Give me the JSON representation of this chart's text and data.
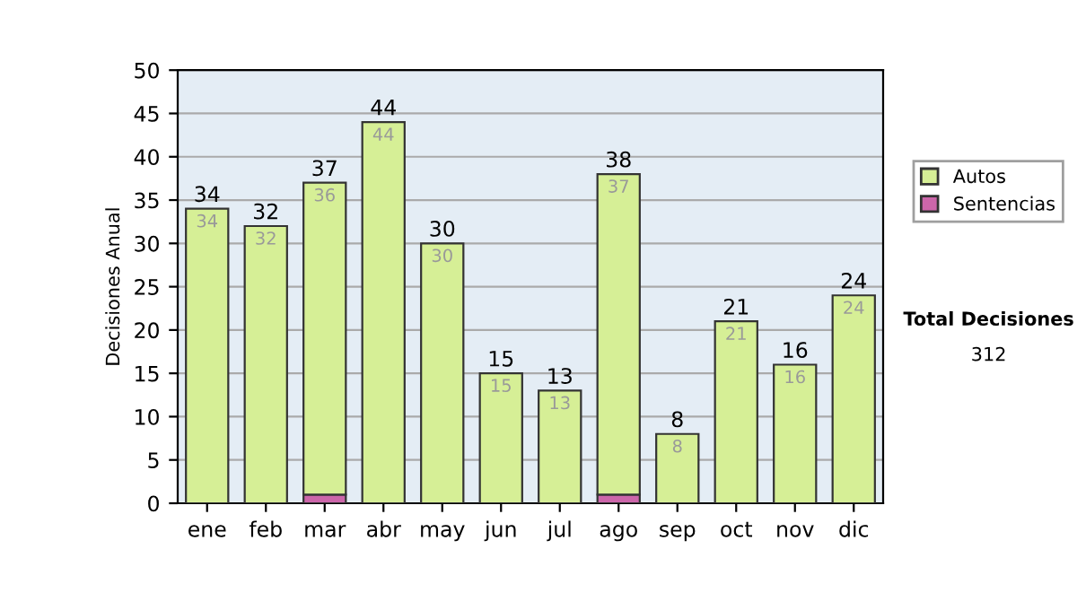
{
  "chart_data": {
    "type": "bar",
    "ylabel": "Decisiones Anual",
    "stacked": true,
    "categories": [
      "ene",
      "feb",
      "mar",
      "abr",
      "may",
      "jun",
      "jul",
      "ago",
      "sep",
      "oct",
      "nov",
      "dic"
    ],
    "series": [
      {
        "name": "Sentencias",
        "color": "#cc66aa",
        "values": [
          0,
          0,
          1,
          0,
          0,
          0,
          0,
          1,
          0,
          0,
          0,
          0
        ]
      },
      {
        "name": "Autos",
        "color": "#d6ef96",
        "values": [
          34,
          32,
          36,
          44,
          30,
          15,
          13,
          37,
          8,
          21,
          16,
          24
        ],
        "value_labels": [
          "34",
          "32",
          "36",
          "44",
          "30",
          "15",
          "13",
          "37",
          "8",
          "21",
          "16",
          "24"
        ]
      }
    ],
    "totals": [
      "34",
      "32",
      "37",
      "44",
      "30",
      "15",
      "13",
      "38",
      "8",
      "21",
      "16",
      "24"
    ],
    "ylim": [
      0,
      50
    ],
    "yticks": [
      0,
      5,
      10,
      15,
      20,
      25,
      30,
      35,
      40,
      45,
      50
    ],
    "grid": "y",
    "legend": "right",
    "annotations": [
      "Total Decisiones",
      "312"
    ]
  }
}
